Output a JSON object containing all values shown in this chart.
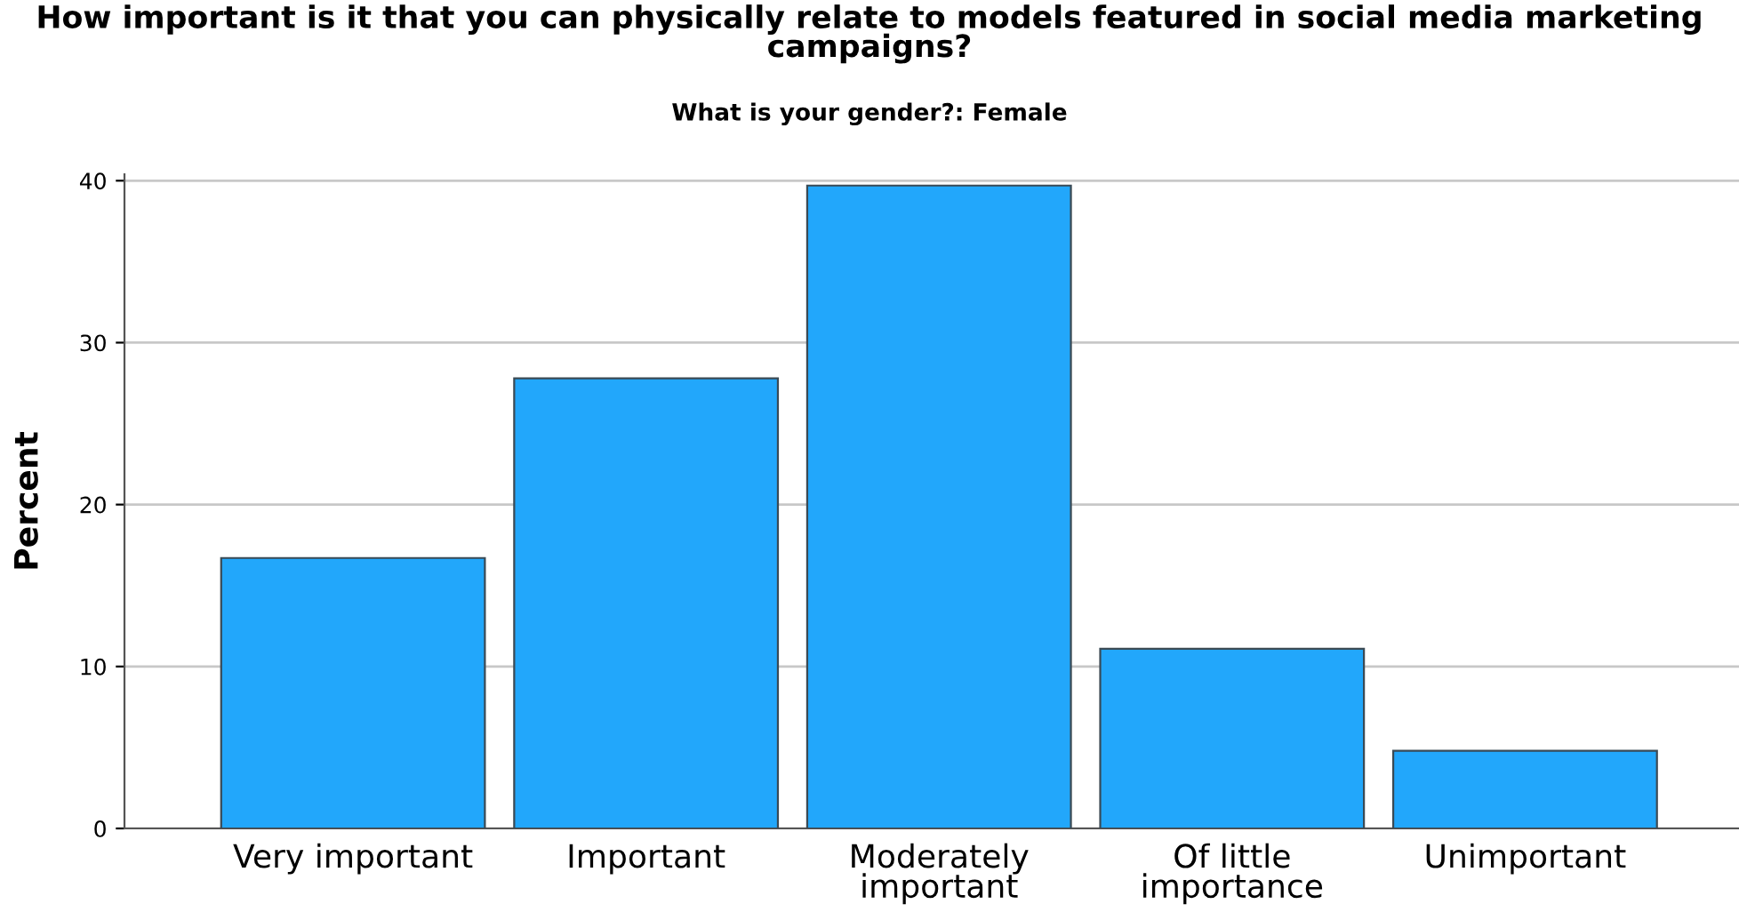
{
  "chart_data": {
    "type": "bar",
    "title": "How important is it that you can physically relate to models featured in social media marketing campaigns?",
    "subtitle": "What is your gender?: Female",
    "ylabel": "Percent",
    "categories": [
      "Very important",
      "Important",
      "Moderately important",
      "Of little importance",
      "Unimportant"
    ],
    "values": [
      16.7,
      27.8,
      39.7,
      11.1,
      4.8
    ],
    "color": "#22a7fb",
    "ylim": [
      0,
      40.4
    ],
    "yticks": [
      0,
      10,
      20,
      30,
      40
    ],
    "grid": "y",
    "legend": false
  }
}
